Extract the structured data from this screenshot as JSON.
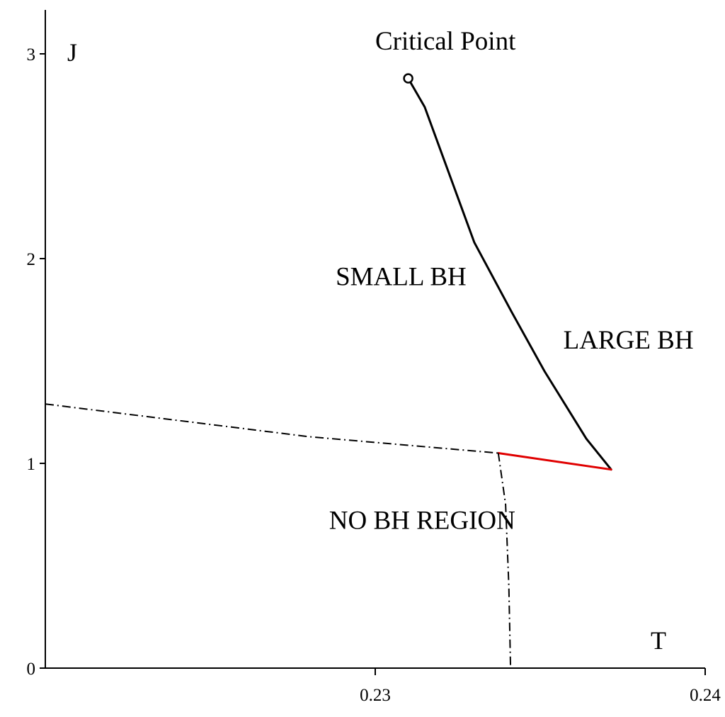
{
  "chart_data": {
    "type": "line",
    "xlabel": "T",
    "ylabel": "J",
    "xlim": [
      0.22,
      0.24
    ],
    "ylim": [
      0,
      3
    ],
    "x_ticks": [
      {
        "value": 0.23,
        "label": "0.23"
      },
      {
        "value": 0.24,
        "label": "0.24"
      }
    ],
    "y_ticks": [
      {
        "value": 0,
        "label": "0"
      },
      {
        "value": 1,
        "label": "1"
      },
      {
        "value": 2,
        "label": "2"
      },
      {
        "value": 3,
        "label": "3"
      }
    ],
    "grid": false,
    "legend": "none",
    "series": [
      {
        "style": "solid",
        "color": "#000000",
        "points": [
          [
            0.231,
            2.88
          ],
          [
            0.2315,
            2.74
          ],
          [
            0.232,
            2.52
          ],
          [
            0.2325,
            2.3
          ],
          [
            0.233,
            2.08
          ],
          [
            0.23413,
            1.74
          ],
          [
            0.23513,
            1.45
          ],
          [
            0.2364,
            1.12
          ],
          [
            0.23715,
            0.97
          ]
        ]
      },
      {
        "style": "solid",
        "color": "#e00000",
        "points": [
          [
            0.23373,
            1.05
          ],
          [
            0.23715,
            0.97
          ]
        ]
      },
      {
        "style": "dash-dot",
        "color": "#000000",
        "points": [
          [
            0.22,
            1.29
          ],
          [
            0.228,
            1.13
          ],
          [
            0.23373,
            1.05
          ]
        ]
      },
      {
        "style": "dash-dot",
        "color": "#000000",
        "points": [
          [
            0.23373,
            1.05
          ],
          [
            0.23395,
            0.8
          ],
          [
            0.23405,
            0.4
          ],
          [
            0.2341,
            0.0
          ]
        ]
      }
    ],
    "markers": [
      {
        "shape": "open-circle",
        "x": 0.231,
        "y": 2.88
      }
    ],
    "annotations": [
      {
        "text": "Critical Point",
        "x": 0.23,
        "y": 3.02
      },
      {
        "text": "SMALL BH",
        "x": 0.2288,
        "y": 1.87
      },
      {
        "text": "LARGE BH",
        "x": 0.2357,
        "y": 1.56
      },
      {
        "text": "NO BH REGION",
        "x": 0.2286,
        "y": 0.68
      }
    ]
  }
}
